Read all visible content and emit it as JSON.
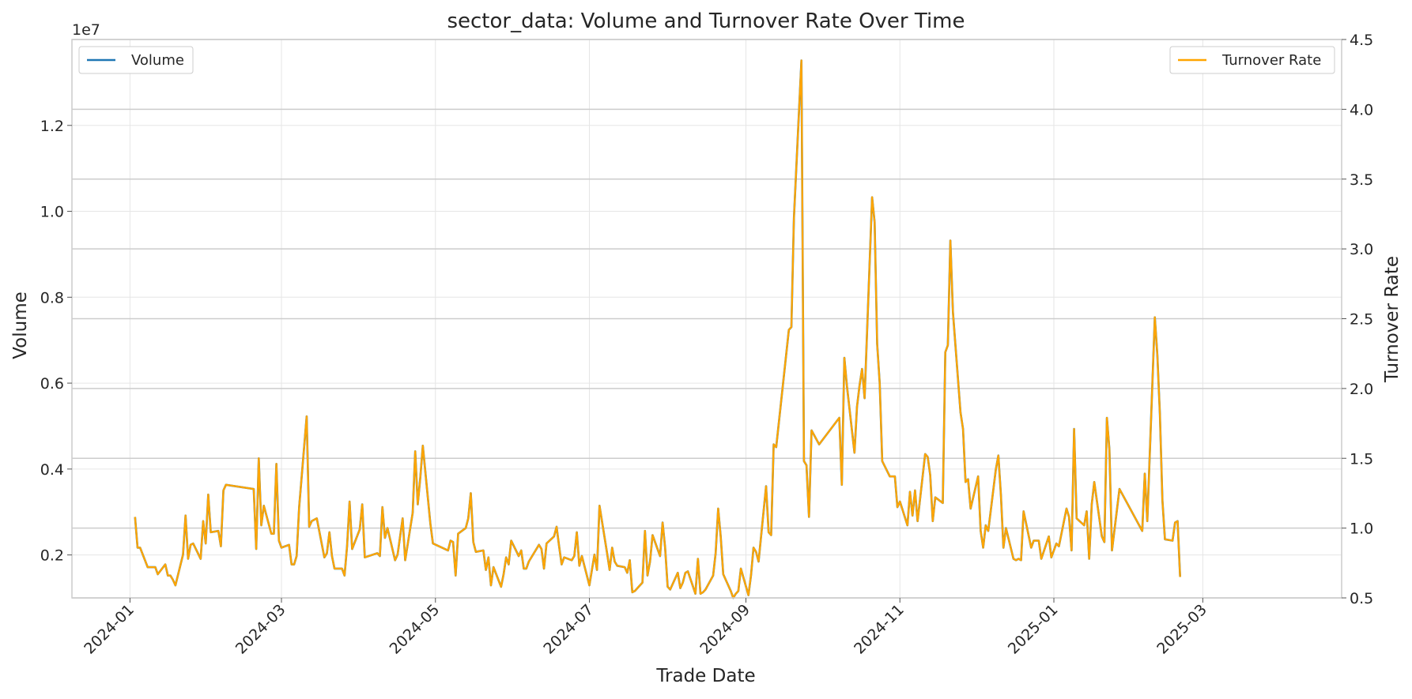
{
  "chart_data": {
    "type": "line",
    "title": "sector_data: Volume and Turnover Rate Over Time",
    "xlabel": "Trade Date",
    "ylabel": "Volume",
    "ylabel_right": "Turnover Rate",
    "offset_text": "1e7",
    "xlim": [
      "2023-12-09",
      "2025-04-25"
    ],
    "ylim": [
      0.1,
      1.4
    ],
    "ylim_right": [
      0.5,
      4.5
    ],
    "x_ticks": [
      "2024-01",
      "2024-03",
      "2024-05",
      "2024-07",
      "2024-09",
      "2024-11",
      "2025-01",
      "2025-03"
    ],
    "y_ticks": [
      "0.2",
      "0.4",
      "0.6",
      "0.8",
      "1.0",
      "1.2"
    ],
    "y_ticks_right": [
      "0.5",
      "1.0",
      "1.5",
      "2.0",
      "2.5",
      "3.0",
      "3.5",
      "4.0",
      "4.5"
    ],
    "grid": true,
    "colors": {
      "volume": "#1f77b4",
      "turnover": "#ffa500",
      "grid": "#e6e6e6",
      "grid_right": "#cccccc",
      "frame": "#cccccc"
    },
    "legend": {
      "left_position": "upper-left",
      "right_position": "upper-right"
    },
    "series": [
      {
        "name": "Volume",
        "axis": "left",
        "color": "#1f77b4"
      },
      {
        "name": "Turnover Rate",
        "axis": "right",
        "color": "#ffa500"
      }
    ],
    "dates": [
      "2024-01-03",
      "2024-01-04",
      "2024-01-05",
      "2024-01-08",
      "2024-01-09",
      "2024-01-10",
      "2024-01-11",
      "2024-01-12",
      "2024-01-15",
      "2024-01-16",
      "2024-01-17",
      "2024-01-18",
      "2024-01-19",
      "2024-01-22",
      "2024-01-23",
      "2024-01-24",
      "2024-01-25",
      "2024-01-26",
      "2024-01-29",
      "2024-01-30",
      "2024-01-31",
      "2024-02-01",
      "2024-02-02",
      "2024-02-05",
      "2024-02-06",
      "2024-02-07",
      "2024-02-08",
      "2024-02-19",
      "2024-02-20",
      "2024-02-21",
      "2024-02-22",
      "2024-02-23",
      "2024-02-26",
      "2024-02-27",
      "2024-02-28",
      "2024-02-29",
      "2024-03-01",
      "2024-03-04",
      "2024-03-05",
      "2024-03-06",
      "2024-03-07",
      "2024-03-08",
      "2024-03-11",
      "2024-03-12",
      "2024-03-13",
      "2024-03-14",
      "2024-03-15",
      "2024-03-18",
      "2024-03-19",
      "2024-03-20",
      "2024-03-21",
      "2024-03-22",
      "2024-03-25",
      "2024-03-26",
      "2024-03-27",
      "2024-03-28",
      "2024-03-29",
      "2024-04-01",
      "2024-04-02",
      "2024-04-03",
      "2024-04-08",
      "2024-04-09",
      "2024-04-10",
      "2024-04-11",
      "2024-04-12",
      "2024-04-15",
      "2024-04-16",
      "2024-04-17",
      "2024-04-18",
      "2024-04-19",
      "2024-04-22",
      "2024-04-23",
      "2024-04-24",
      "2024-04-25",
      "2024-04-26",
      "2024-04-29",
      "2024-04-30",
      "2024-05-06",
      "2024-05-07",
      "2024-05-08",
      "2024-05-09",
      "2024-05-10",
      "2024-05-13",
      "2024-05-14",
      "2024-05-15",
      "2024-05-16",
      "2024-05-17",
      "2024-05-20",
      "2024-05-21",
      "2024-05-22",
      "2024-05-23",
      "2024-05-24",
      "2024-05-27",
      "2024-05-28",
      "2024-05-29",
      "2024-05-30",
      "2024-05-31",
      "2024-06-03",
      "2024-06-04",
      "2024-06-05",
      "2024-06-06",
      "2024-06-07",
      "2024-06-11",
      "2024-06-12",
      "2024-06-13",
      "2024-06-14",
      "2024-06-17",
      "2024-06-18",
      "2024-06-19",
      "2024-06-20",
      "2024-06-21",
      "2024-06-24",
      "2024-06-25",
      "2024-06-26",
      "2024-06-27",
      "2024-06-28",
      "2024-07-01",
      "2024-07-02",
      "2024-07-03",
      "2024-07-04",
      "2024-07-05",
      "2024-07-08",
      "2024-07-09",
      "2024-07-10",
      "2024-07-11",
      "2024-07-12",
      "2024-07-15",
      "2024-07-16",
      "2024-07-17",
      "2024-07-18",
      "2024-07-19",
      "2024-07-22",
      "2024-07-23",
      "2024-07-24",
      "2024-07-25",
      "2024-07-26",
      "2024-07-29",
      "2024-07-30",
      "2024-07-31",
      "2024-08-01",
      "2024-08-02",
      "2024-08-05",
      "2024-08-06",
      "2024-08-07",
      "2024-08-08",
      "2024-08-09",
      "2024-08-12",
      "2024-08-13",
      "2024-08-14",
      "2024-08-15",
      "2024-08-16",
      "2024-08-19",
      "2024-08-20",
      "2024-08-21",
      "2024-08-22",
      "2024-08-23",
      "2024-08-26",
      "2024-08-27",
      "2024-08-28",
      "2024-08-29",
      "2024-08-30",
      "2024-09-02",
      "2024-09-03",
      "2024-09-04",
      "2024-09-05",
      "2024-09-06",
      "2024-09-09",
      "2024-09-10",
      "2024-09-11",
      "2024-09-12",
      "2024-09-13",
      "2024-09-18",
      "2024-09-19",
      "2024-09-20",
      "2024-09-23",
      "2024-09-24",
      "2024-09-25",
      "2024-09-26",
      "2024-09-27",
      "2024-09-30",
      "2024-10-08",
      "2024-10-09",
      "2024-10-10",
      "2024-10-11",
      "2024-10-14",
      "2024-10-15",
      "2024-10-16",
      "2024-10-17",
      "2024-10-18",
      "2024-10-21",
      "2024-10-22",
      "2024-10-23",
      "2024-10-24",
      "2024-10-25",
      "2024-10-28",
      "2024-10-29",
      "2024-10-30",
      "2024-10-31",
      "2024-11-01",
      "2024-11-04",
      "2024-11-05",
      "2024-11-06",
      "2024-11-07",
      "2024-11-08",
      "2024-11-11",
      "2024-11-12",
      "2024-11-13",
      "2024-11-14",
      "2024-11-15",
      "2024-11-18",
      "2024-11-19",
      "2024-11-20",
      "2024-11-21",
      "2024-11-22",
      "2024-11-25",
      "2024-11-26",
      "2024-11-27",
      "2024-11-28",
      "2024-11-29",
      "2024-12-02",
      "2024-12-03",
      "2024-12-04",
      "2024-12-05",
      "2024-12-06",
      "2024-12-09",
      "2024-12-10",
      "2024-12-11",
      "2024-12-12",
      "2024-12-13",
      "2024-12-16",
      "2024-12-17",
      "2024-12-18",
      "2024-12-19",
      "2024-12-20",
      "2024-12-23",
      "2024-12-24",
      "2024-12-25",
      "2024-12-26",
      "2024-12-27",
      "2024-12-30",
      "2024-12-31",
      "2025-01-02",
      "2025-01-03",
      "2025-01-06",
      "2025-01-07",
      "2025-01-08",
      "2025-01-09",
      "2025-01-10",
      "2025-01-13",
      "2025-01-14",
      "2025-01-15",
      "2025-01-16",
      "2025-01-17",
      "2025-01-20",
      "2025-01-21",
      "2025-01-22",
      "2025-01-23",
      "2025-01-24",
      "2025-01-27",
      "2025-02-05",
      "2025-02-06",
      "2025-02-07",
      "2025-02-10",
      "2025-02-11",
      "2025-02-12",
      "2025-02-13",
      "2025-02-14",
      "2025-02-17",
      "2025-02-18",
      "2025-02-19",
      "2025-02-20",
      "2025-02-21",
      "2025-02-24",
      "2025-02-25",
      "2025-02-26",
      "2025-02-27",
      "2025-02-28",
      "2025-03-03",
      "2025-03-04",
      "2025-03-05",
      "2025-03-06",
      "2025-03-07",
      "2025-03-10",
      "2025-03-11",
      "2025-03-12",
      "2025-03-13",
      "2025-03-14",
      "2025-03-17",
      "2025-03-18",
      "2025-03-19",
      "2025-03-20",
      "2025-03-21",
      "2025-03-24",
      "2025-03-25",
      "2025-03-26",
      "2025-03-27",
      "2025-03-28"
    ],
    "turnover": [
      1.08,
      0.86,
      0.86,
      0.72,
      0.72,
      0.72,
      0.72,
      0.67,
      0.74,
      0.66,
      0.66,
      0.63,
      0.59,
      0.81,
      1.09,
      0.78,
      0.88,
      0.89,
      0.78,
      1.05,
      0.89,
      1.24,
      0.97,
      0.98,
      0.87,
      1.27,
      1.31,
      1.28,
      0.85,
      1.5,
      1.02,
      1.16,
      0.96,
      0.96,
      1.46,
      0.91,
      0.86,
      0.88,
      0.74,
      0.74,
      0.8,
      1.15,
      1.8,
      1.01,
      1.05,
      1.06,
      1.07,
      0.79,
      0.82,
      0.97,
      0.8,
      0.71,
      0.71,
      0.66,
      0.87,
      1.19,
      0.85,
      0.99,
      1.17,
      0.79,
      0.82,
      0.8,
      1.15,
      0.93,
      1.0,
      0.77,
      0.81,
      0.94,
      1.07,
      0.77,
      1.11,
      1.55,
      1.17,
      1.36,
      1.59,
      1.03,
      0.89,
      0.84,
      0.91,
      0.9,
      0.66,
      0.96,
      1.0,
      1.07,
      1.25,
      0.9,
      0.83,
      0.84,
      0.7,
      0.79,
      0.59,
      0.72,
      0.58,
      0.67,
      0.79,
      0.74,
      0.91,
      0.8,
      0.84,
      0.71,
      0.71,
      0.76,
      0.88,
      0.85,
      0.71,
      0.89,
      0.94,
      1.01,
      0.87,
      0.74,
      0.79,
      0.77,
      0.8,
      0.97,
      0.73,
      0.8,
      0.59,
      0.7,
      0.81,
      0.7,
      1.16,
      0.82,
      0.7,
      0.86,
      0.76,
      0.73,
      0.72,
      0.68,
      0.77,
      0.54,
      0.55,
      0.61,
      0.98,
      0.66,
      0.76,
      0.95,
      0.8,
      1.04,
      0.86,
      0.58,
      0.56,
      0.68,
      0.57,
      0.61,
      0.68,
      0.69,
      0.53,
      0.78,
      0.53,
      0.54,
      0.56,
      0.66,
      0.82,
      1.14,
      0.94,
      0.67,
      0.55,
      0.5,
      0.53,
      0.55,
      0.71,
      0.52,
      0.66,
      0.86,
      0.83,
      0.76,
      1.3,
      0.97,
      0.95,
      1.6,
      1.58,
      2.42,
      2.44,
      3.22,
      4.35,
      1.48,
      1.45,
      1.08,
      1.7,
      1.6,
      1.79,
      1.31,
      2.22,
      2.02,
      1.54,
      1.87,
      2.02,
      2.14,
      1.93,
      3.37,
      3.19,
      2.32,
      2.04,
      1.48,
      1.37,
      1.37,
      1.37,
      1.15,
      1.19,
      1.02,
      1.26,
      1.09,
      1.27,
      1.05,
      1.53,
      1.51,
      1.38,
      1.05,
      1.22,
      1.18,
      2.26,
      2.31,
      3.06,
      2.55,
      1.83,
      1.71,
      1.33,
      1.35,
      1.14,
      1.37,
      0.98,
      0.86,
      1.02,
      0.98,
      1.42,
      1.52,
      1.24,
      0.86,
      1.0,
      0.78,
      0.77,
      0.78,
      0.77,
      1.12,
      0.86,
      0.91,
      0.91,
      0.91,
      0.78,
      0.94,
      0.79,
      0.89,
      0.87,
      1.14,
      1.08,
      0.84,
      1.71,
      1.07,
      1.02,
      1.12,
      0.78,
      1.17,
      1.33,
      0.94,
      0.9,
      1.79,
      1.56,
      0.84,
      1.28,
      0.98,
      1.39,
      1.05,
      2.51,
      2.24,
      1.82,
      1.2,
      0.92,
      0.91,
      1.04,
      1.05,
      0.65
    ],
    "volume_scale": 10000000
  },
  "legend_left": {
    "label": "Volume"
  },
  "legend_right": {
    "label": "Turnover Rate"
  }
}
